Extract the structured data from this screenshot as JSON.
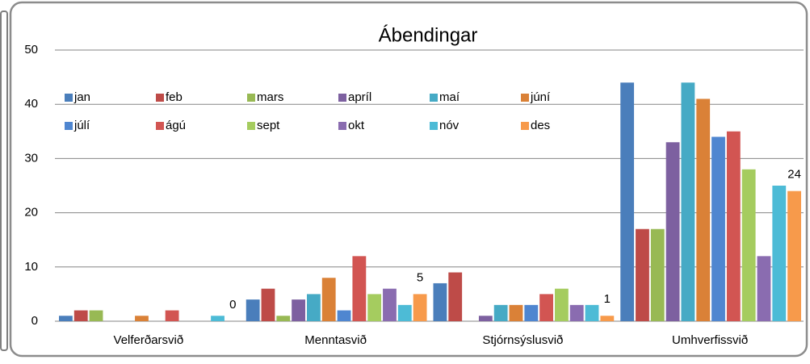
{
  "chart_data": {
    "type": "bar",
    "title": "Ábendingar",
    "categories": [
      "Velferðarsvið",
      "Menntasvið",
      "Stjórnsýslusvið",
      "Umhverfissvið"
    ],
    "series": [
      {
        "name": "jan",
        "color": "#4a7ebb",
        "values": [
          1,
          4,
          7,
          44
        ]
      },
      {
        "name": "feb",
        "color": "#be4b48",
        "values": [
          2,
          6,
          9,
          17
        ]
      },
      {
        "name": "mars",
        "color": "#98b954",
        "values": [
          2,
          1,
          0,
          17
        ]
      },
      {
        "name": "apríl",
        "color": "#7d60a0",
        "values": [
          0,
          4,
          1,
          33
        ]
      },
      {
        "name": "maí",
        "color": "#46aac5",
        "values": [
          0,
          5,
          3,
          44
        ]
      },
      {
        "name": "júní",
        "color": "#da8137",
        "values": [
          1,
          8,
          3,
          41
        ]
      },
      {
        "name": "júlí",
        "color": "#4f86d0",
        "values": [
          0,
          2,
          3,
          34
        ]
      },
      {
        "name": "ágú",
        "color": "#d25552",
        "values": [
          2,
          12,
          5,
          35
        ]
      },
      {
        "name": "sept",
        "color": "#a5cc5f",
        "values": [
          0,
          5,
          6,
          28
        ]
      },
      {
        "name": "okt",
        "color": "#8a6cb0",
        "values": [
          0,
          6,
          3,
          12
        ]
      },
      {
        "name": "nóv",
        "color": "#4dbbd6",
        "values": [
          1,
          3,
          3,
          25
        ]
      },
      {
        "name": "des",
        "color": "#f79a4b",
        "values": [
          0,
          5,
          1,
          24
        ],
        "data_labels": true
      }
    ],
    "ylim": [
      0,
      50
    ],
    "yticks": [
      0,
      10,
      20,
      30,
      40,
      50
    ],
    "grid": true,
    "legend": "top"
  }
}
